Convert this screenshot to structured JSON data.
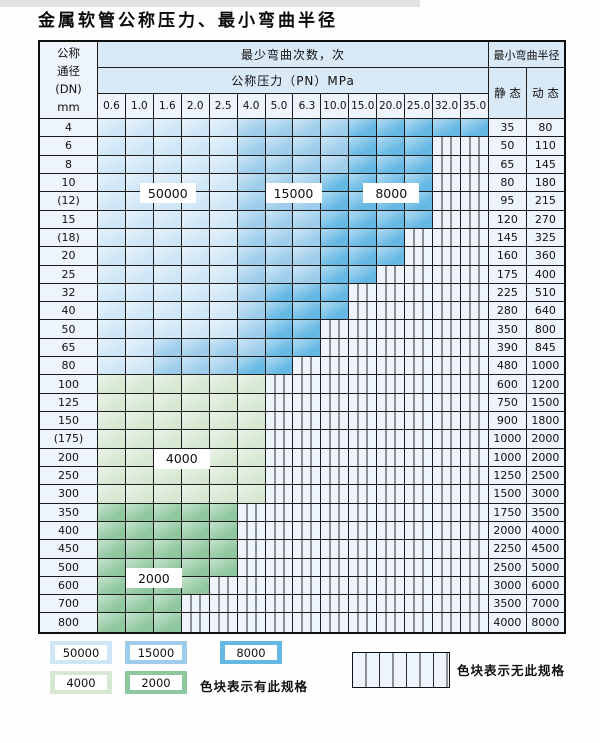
{
  "title": "金属软管公称压力、最小弯曲半径",
  "table": {
    "header": {
      "dn_lines": [
        "公称",
        "通径",
        "(DN)",
        "mm"
      ],
      "cycles_title": "最少弯曲次数，次",
      "pressure_title": "公称压力（PN）MPa",
      "pressure_cols": [
        "0.6",
        "1.0",
        "1.6",
        "2.0",
        "2.5",
        "4.0",
        "5.0",
        "6.3",
        "10.0",
        "15.0",
        "20.0",
        "25.0",
        "32.0",
        "35.0"
      ],
      "radius_title": "最小弯曲半径",
      "static_label": "静 态",
      "dynamic_label": "动 态"
    },
    "shade_codes": {
      "L": "50000次-浅蓝",
      "M": "15000次-中蓝",
      "D": "8000次-深蓝",
      "g": "4000次-浅绿",
      "G": "2000次-深绿",
      "X": "无此规格-竖线"
    },
    "rows": [
      {
        "dn": "4",
        "static": "35",
        "dynamic": "80",
        "cells": "LLLLLMMMMDDDDD"
      },
      {
        "dn": "6",
        "static": "50",
        "dynamic": "110",
        "cells": "LLLLLMMMMDDDXX"
      },
      {
        "dn": "8",
        "static": "65",
        "dynamic": "145",
        "cells": "LLLLLMMMMDDDXX"
      },
      {
        "dn": "10",
        "static": "80",
        "dynamic": "180",
        "cells": "LLLLLMMMDDDDXX"
      },
      {
        "dn": "(12)",
        "static": "95",
        "dynamic": "215",
        "cells": "LLLLLMMMDDDDXX"
      },
      {
        "dn": "15",
        "static": "120",
        "dynamic": "270",
        "cells": "LLLLLMMMDDDDXX"
      },
      {
        "dn": "(18)",
        "static": "145",
        "dynamic": "325",
        "cells": "LLLLLMMMDDDXXX"
      },
      {
        "dn": "20",
        "static": "160",
        "dynamic": "360",
        "cells": "LLLLLMMMDDDXXX"
      },
      {
        "dn": "25",
        "static": "175",
        "dynamic": "400",
        "cells": "LLLLLMMMDDXXXX"
      },
      {
        "dn": "32",
        "static": "225",
        "dynamic": "510",
        "cells": "LLLLLMDDDXXXXX"
      },
      {
        "dn": "40",
        "static": "280",
        "dynamic": "640",
        "cells": "LLLLLMDDDXXXXX"
      },
      {
        "dn": "50",
        "static": "350",
        "dynamic": "800",
        "cells": "LLLLLMDDXXXXXX"
      },
      {
        "dn": "65",
        "static": "390",
        "dynamic": "845",
        "cells": "LLMMMMDDXXXXXX"
      },
      {
        "dn": "80",
        "static": "480",
        "dynamic": "1000",
        "cells": "LLMMMDDXXXXXXX"
      },
      {
        "dn": "100",
        "static": "600",
        "dynamic": "1200",
        "cells": "ggggggXXXXXXXX"
      },
      {
        "dn": "125",
        "static": "750",
        "dynamic": "1500",
        "cells": "ggggggXXXXXXXX"
      },
      {
        "dn": "150",
        "static": "900",
        "dynamic": "1800",
        "cells": "ggggggXXXXXXXX"
      },
      {
        "dn": "(175)",
        "static": "1000",
        "dynamic": "2000",
        "cells": "ggggggXXXXXXXX"
      },
      {
        "dn": "200",
        "static": "1000",
        "dynamic": "2000",
        "cells": "ggggggXXXXXXXX"
      },
      {
        "dn": "250",
        "static": "1250",
        "dynamic": "2500",
        "cells": "ggggggXXXXXXXX"
      },
      {
        "dn": "300",
        "static": "1500",
        "dynamic": "3000",
        "cells": "ggggggXXXXXXXX"
      },
      {
        "dn": "350",
        "static": "1750",
        "dynamic": "3500",
        "cells": "GGGGGXXXXXXXXX"
      },
      {
        "dn": "400",
        "static": "2000",
        "dynamic": "4000",
        "cells": "GGGGGXXXXXXXXX"
      },
      {
        "dn": "450",
        "static": "2250",
        "dynamic": "4500",
        "cells": "GGGGGXXXXXXXXX"
      },
      {
        "dn": "500",
        "static": "2500",
        "dynamic": "5000",
        "cells": "GGGGGXXXXXXXXX"
      },
      {
        "dn": "600",
        "static": "3000",
        "dynamic": "6000",
        "cells": "GGGGXXXXXXXXXX"
      },
      {
        "dn": "700",
        "static": "3500",
        "dynamic": "7000",
        "cells": "GGGXXXXXXXXXXX"
      },
      {
        "dn": "800",
        "static": "4000",
        "dynamic": "8000",
        "cells": "GGGXXXXXXXXXXX"
      }
    ],
    "region_labels": [
      {
        "text": "50000",
        "rows": [
          3,
          4
        ],
        "cols": [
          1,
          3
        ]
      },
      {
        "text": "15000",
        "rows": [
          3,
          4
        ],
        "cols": [
          6,
          7
        ]
      },
      {
        "text": "8000",
        "rows": [
          3,
          4
        ],
        "cols": [
          9,
          11
        ]
      },
      {
        "text": "4000",
        "rows": [
          18,
          18
        ],
        "cols": [
          2,
          3
        ]
      },
      {
        "text": "2000",
        "rows": [
          24,
          25
        ],
        "cols": [
          1,
          2
        ]
      }
    ]
  },
  "legend": {
    "has_spec_blocks": [
      {
        "value": "50000",
        "color": "blue_light"
      },
      {
        "value": "15000",
        "color": "blue_mid"
      },
      {
        "value": "8000",
        "color": "blue_dark"
      },
      {
        "value": "4000",
        "color": "green_light"
      },
      {
        "value": "2000",
        "color": "green_mid"
      }
    ],
    "has_spec_text": "色块表示有此规格",
    "no_spec_text": "色块表示无此规格"
  },
  "colors": {
    "blue_light": "#cfe6f6",
    "blue_mid": "#9dcdeb",
    "blue_dark": "#66b8e4",
    "green_light": "#d6e8d2",
    "green_mid": "#8fc79e",
    "hatch_bg": "#eef4fb",
    "header_band": "#d9e9f6",
    "header_cell": "#edf4fb"
  }
}
